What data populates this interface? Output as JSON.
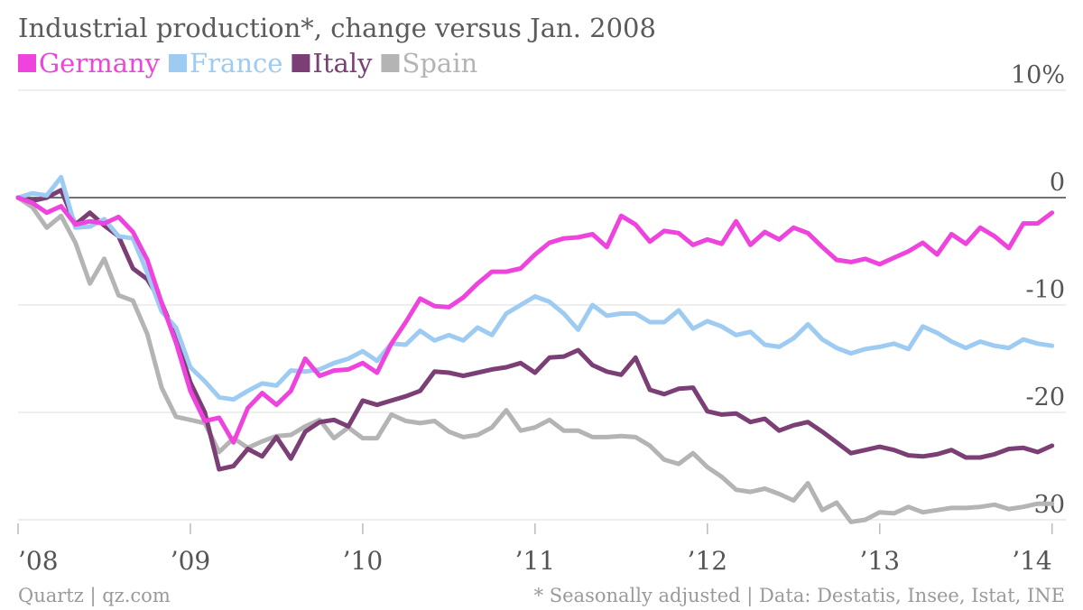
{
  "chart_data": {
    "type": "line",
    "title": "Industrial production*, change versus Jan. 2008",
    "x_tick_labels": [
      "’08",
      "’09",
      "’10",
      "’11",
      "’12",
      "’13",
      "’14"
    ],
    "x_range": [
      2008.0,
      2014.08
    ],
    "y_ticks": [
      {
        "value": 10,
        "label": "10%"
      },
      {
        "value": 0,
        "label": "0"
      },
      {
        "value": -10,
        "label": "-10"
      },
      {
        "value": -20,
        "label": "-20"
      },
      {
        "value": -30,
        "label": "-30"
      }
    ],
    "ylim": [
      -30,
      10
    ],
    "legend_position": "top-left",
    "grid": true,
    "x_start": 2008.0,
    "x_step_years": 0.08333,
    "series": [
      {
        "name": "Germany",
        "color": "#ee44dd",
        "values": [
          0,
          -0.5,
          -1.4,
          -0.8,
          -2.5,
          -2.2,
          -2.4,
          -1.8,
          -3.2,
          -5.8,
          -9.8,
          -13.5,
          -18.0,
          -20.8,
          -20.5,
          -22.8,
          -19.6,
          -18.2,
          -19.3,
          -18.0,
          -15.0,
          -16.6,
          -16.1,
          -16.0,
          -15.4,
          -16.3,
          -13.6,
          -11.6,
          -9.4,
          -10.1,
          -10.2,
          -9.3,
          -8.0,
          -6.9,
          -6.9,
          -6.6,
          -5.3,
          -4.2,
          -3.8,
          -3.7,
          -3.4,
          -4.6,
          -1.7,
          -2.5,
          -4.1,
          -3.1,
          -3.3,
          -4.4,
          -3.9,
          -4.3,
          -2.2,
          -4.4,
          -3.2,
          -3.9,
          -2.8,
          -3.3,
          -4.6,
          -5.8,
          -6.0,
          -5.7,
          -6.2,
          -5.6,
          -5.0,
          -4.2,
          -5.3,
          -3.4,
          -4.3,
          -2.8,
          -3.6,
          -4.7,
          -2.4,
          -2.4,
          -1.4
        ]
      },
      {
        "name": "France",
        "color": "#9dcbf2",
        "values": [
          0,
          0.4,
          0.2,
          1.9,
          -2.8,
          -2.7,
          -2.0,
          -3.6,
          -3.8,
          -7.0,
          -10.6,
          -12.1,
          -15.8,
          -17.1,
          -18.6,
          -18.8,
          -18.0,
          -17.3,
          -17.5,
          -16.1,
          -16.2,
          -16.0,
          -15.4,
          -15.0,
          -14.3,
          -15.2,
          -13.6,
          -13.7,
          -12.4,
          -13.3,
          -12.8,
          -13.3,
          -12.1,
          -12.8,
          -10.8,
          -10.0,
          -9.2,
          -9.7,
          -10.8,
          -12.3,
          -10.0,
          -11.0,
          -10.8,
          -10.8,
          -11.6,
          -11.6,
          -10.5,
          -12.2,
          -11.5,
          -12.0,
          -12.8,
          -12.5,
          -13.7,
          -13.9,
          -13.1,
          -11.8,
          -13.2,
          -14.0,
          -14.5,
          -14.1,
          -13.9,
          -13.6,
          -14.1,
          -12.0,
          -12.6,
          -13.4,
          -14.0,
          -13.4,
          -13.8,
          -14.0,
          -13.2,
          -13.6,
          -13.8
        ]
      },
      {
        "name": "Italy",
        "color": "#7b3f75",
        "values": [
          0,
          -0.3,
          0.0,
          0.7,
          -2.5,
          -1.4,
          -2.6,
          -3.6,
          -6.6,
          -7.6,
          -9.8,
          -13.0,
          -17.2,
          -20.0,
          -25.3,
          -25.0,
          -23.4,
          -24.1,
          -22.3,
          -24.3,
          -21.8,
          -20.9,
          -20.7,
          -21.3,
          -18.9,
          -19.3,
          -18.9,
          -18.5,
          -18.0,
          -16.2,
          -16.3,
          -16.6,
          -16.3,
          -16.0,
          -15.8,
          -15.4,
          -16.3,
          -14.9,
          -14.8,
          -14.2,
          -15.6,
          -16.2,
          -16.5,
          -14.9,
          -17.9,
          -18.3,
          -17.8,
          -17.7,
          -19.9,
          -20.2,
          -20.1,
          -20.9,
          -20.6,
          -21.7,
          -21.2,
          -20.9,
          -21.8,
          -22.8,
          -23.8,
          -23.5,
          -23.2,
          -23.5,
          -24.0,
          -24.1,
          -23.9,
          -23.5,
          -24.2,
          -24.2,
          -23.9,
          -23.4,
          -23.3,
          -23.7,
          -23.1
        ]
      },
      {
        "name": "Spain",
        "color": "#b4b4b4",
        "values": [
          0,
          -0.9,
          -2.8,
          -1.7,
          -4.2,
          -8.0,
          -5.7,
          -9.1,
          -9.6,
          -12.7,
          -17.7,
          -20.4,
          -20.7,
          -21.0,
          -23.7,
          -22.4,
          -23.3,
          -22.7,
          -22.2,
          -22.1,
          -21.3,
          -20.7,
          -22.4,
          -21.4,
          -22.4,
          -22.4,
          -20.2,
          -20.8,
          -21.0,
          -20.8,
          -21.8,
          -22.3,
          -22.1,
          -21.4,
          -19.8,
          -21.7,
          -21.4,
          -20.7,
          -21.7,
          -21.7,
          -22.3,
          -22.3,
          -22.2,
          -22.3,
          -23.1,
          -24.4,
          -24.8,
          -23.8,
          -25.1,
          -26.0,
          -27.2,
          -27.4,
          -27.1,
          -27.6,
          -28.2,
          -26.6,
          -29.1,
          -28.4,
          -30.2,
          -30.0,
          -29.3,
          -29.4,
          -28.8,
          -29.3,
          -29.1,
          -28.9,
          -28.9,
          -28.8,
          -28.6,
          -29.0,
          -28.8,
          -28.5,
          -28.5
        ]
      }
    ]
  },
  "footer": {
    "source_left": "Quartz | qz.com",
    "source_right": "* Seasonally adjusted | Data: Destatis, Insee, Istat, INE"
  }
}
